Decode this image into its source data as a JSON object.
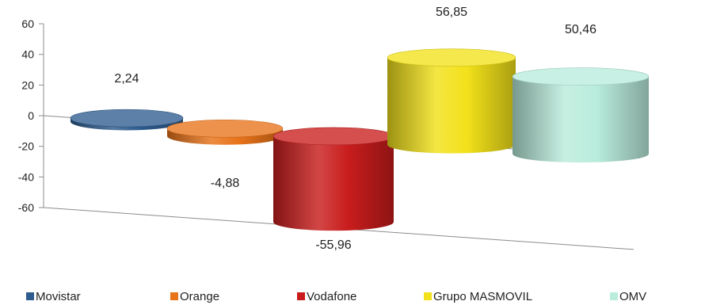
{
  "chart_data": {
    "type": "bar",
    "style": "3d-cylinder",
    "categories": [
      "Movistar",
      "Orange",
      "Vodafone",
      "Grupo MASMOVIL",
      "OMV"
    ],
    "values": [
      2.24,
      -4.88,
      -55.96,
      56.85,
      50.46
    ],
    "value_labels": [
      "2,24",
      "-4,88",
      "-55,96",
      "56,85",
      "50,46"
    ],
    "colors": [
      "#2e5c8e",
      "#e8731a",
      "#c91d1d",
      "#f2e11a",
      "#b9ecdc"
    ],
    "ylim": [
      -60,
      60
    ],
    "yticks": [
      60,
      40,
      20,
      0,
      -20,
      -40,
      -60
    ],
    "title": "",
    "xlabel": "",
    "ylabel": "",
    "legend_position": "bottom",
    "grid": false
  }
}
